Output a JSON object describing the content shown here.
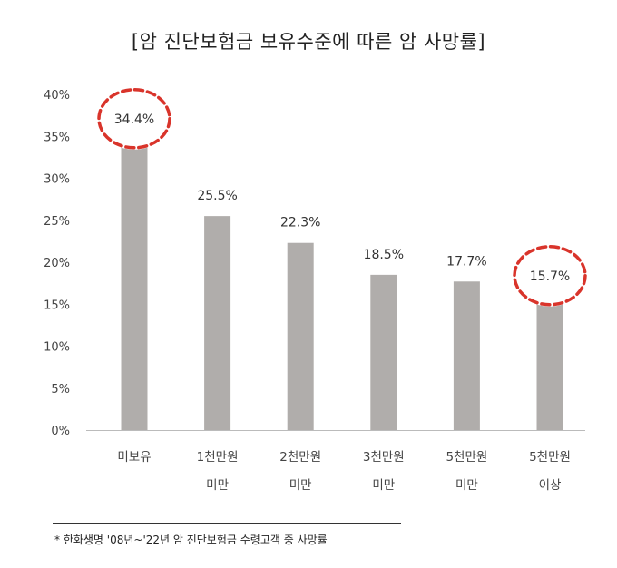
{
  "chart_data": {
    "type": "bar",
    "title": "[암 진단보험금 보유수준에 따른 암 사망률]",
    "xlabel": "",
    "ylabel": "",
    "categories": [
      [
        "미보유"
      ],
      [
        "1천만원",
        "미만"
      ],
      [
        "2천만원",
        "미만"
      ],
      [
        "3천만원",
        "미만"
      ],
      [
        "5천만원",
        "미만"
      ],
      [
        "5천만원",
        "이상"
      ]
    ],
    "values": [
      34.4,
      25.5,
      22.3,
      18.5,
      17.7,
      15.7
    ],
    "data_labels": [
      "34.4%",
      "25.5%",
      "22.3%",
      "18.5%",
      "17.7%",
      "15.7%"
    ],
    "highlighted": [
      0,
      5
    ],
    "ylim": [
      0,
      40
    ],
    "yticks": [
      0,
      5,
      10,
      15,
      20,
      25,
      30,
      35,
      40
    ],
    "ytick_labels": [
      "0%",
      "5%",
      "10%",
      "15%",
      "20%",
      "25%",
      "30%",
      "35%",
      "40%"
    ],
    "grid": false,
    "bar_color": "#b0adab",
    "highlight_color": "#d9342b",
    "axis_color": "#bbbbbb"
  },
  "footnote": "* 한화생명 '08년~'22년 암 진단보험금 수령고객 중 사망률"
}
